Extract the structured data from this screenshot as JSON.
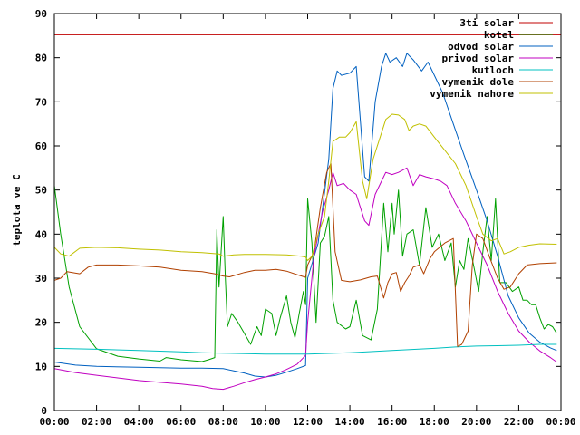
{
  "chart_data": {
    "type": "line",
    "title": "",
    "xlabel": "",
    "ylabel": "teplota ve C",
    "xlim": [
      0,
      24
    ],
    "ylim": [
      0,
      90
    ],
    "grid": false,
    "legend_position": "top-right",
    "x_tick_labels": [
      "00:00",
      "02:00",
      "04:00",
      "06:00",
      "08:00",
      "10:00",
      "12:00",
      "14:00",
      "16:00",
      "18:00",
      "20:00",
      "22:00",
      "00:00"
    ],
    "y_ticks": [
      0,
      10,
      20,
      30,
      40,
      50,
      60,
      70,
      80,
      90
    ],
    "series": [
      {
        "name": "3ti solar",
        "color": "#c00000",
        "points": [
          [
            0,
            85.2
          ],
          [
            24,
            85.2
          ]
        ]
      },
      {
        "name": "kotel",
        "color": "#00a000",
        "points": [
          [
            0,
            51
          ],
          [
            0.3,
            40
          ],
          [
            0.7,
            28
          ],
          [
            1.2,
            19
          ],
          [
            2,
            14
          ],
          [
            3,
            12.3
          ],
          [
            4,
            11.7
          ],
          [
            5,
            11.2
          ],
          [
            5.3,
            12
          ],
          [
            6,
            11.5
          ],
          [
            7,
            11.1
          ],
          [
            7.3,
            11.5
          ],
          [
            7.6,
            12
          ],
          [
            7.7,
            41
          ],
          [
            7.8,
            28
          ],
          [
            7.9,
            36
          ],
          [
            8,
            44
          ],
          [
            8.1,
            30
          ],
          [
            8.2,
            19
          ],
          [
            8.4,
            22
          ],
          [
            8.7,
            20
          ],
          [
            9,
            17.5
          ],
          [
            9.3,
            15
          ],
          [
            9.6,
            19
          ],
          [
            9.8,
            17
          ],
          [
            10,
            23
          ],
          [
            10.3,
            22
          ],
          [
            10.5,
            17
          ],
          [
            10.7,
            21
          ],
          [
            11,
            26
          ],
          [
            11.2,
            20
          ],
          [
            11.4,
            16.5
          ],
          [
            11.6,
            22
          ],
          [
            11.8,
            27
          ],
          [
            11.9,
            24
          ],
          [
            12,
            48
          ],
          [
            12.2,
            38
          ],
          [
            12.4,
            20
          ],
          [
            12.6,
            38
          ],
          [
            12.8,
            39.5
          ],
          [
            13,
            44
          ],
          [
            13.2,
            25
          ],
          [
            13.4,
            20
          ],
          [
            13.8,
            18.5
          ],
          [
            14,
            19
          ],
          [
            14.3,
            25
          ],
          [
            14.6,
            17
          ],
          [
            15,
            16
          ],
          [
            15.3,
            23
          ],
          [
            15.6,
            47
          ],
          [
            15.8,
            36
          ],
          [
            16,
            47
          ],
          [
            16.1,
            40
          ],
          [
            16.3,
            50
          ],
          [
            16.5,
            35
          ],
          [
            16.7,
            40
          ],
          [
            17,
            41
          ],
          [
            17.3,
            33
          ],
          [
            17.6,
            46
          ],
          [
            17.9,
            37
          ],
          [
            18.2,
            40
          ],
          [
            18.5,
            34
          ],
          [
            18.8,
            38
          ],
          [
            19,
            28
          ],
          [
            19.2,
            34
          ],
          [
            19.4,
            32
          ],
          [
            19.6,
            39
          ],
          [
            19.9,
            32
          ],
          [
            20.1,
            27
          ],
          [
            20.3,
            36
          ],
          [
            20.5,
            44
          ],
          [
            20.7,
            34
          ],
          [
            20.9,
            48
          ],
          [
            21.1,
            29
          ],
          [
            21.4,
            29
          ],
          [
            21.7,
            27
          ],
          [
            22,
            28
          ],
          [
            22.2,
            25
          ],
          [
            22.4,
            25
          ],
          [
            22.6,
            24
          ],
          [
            22.8,
            24
          ],
          [
            23,
            21
          ],
          [
            23.2,
            18.5
          ],
          [
            23.4,
            19.5
          ],
          [
            23.6,
            19
          ],
          [
            23.8,
            17.5
          ]
        ]
      },
      {
        "name": "odvod solar",
        "color": "#0060c0",
        "points": [
          [
            0,
            11
          ],
          [
            1,
            10.3
          ],
          [
            2,
            10
          ],
          [
            4,
            9.8
          ],
          [
            6,
            9.6
          ],
          [
            7,
            9.6
          ],
          [
            8,
            9.5
          ],
          [
            8.5,
            9
          ],
          [
            9,
            8.5
          ],
          [
            9.5,
            7.8
          ],
          [
            10,
            7.6
          ],
          [
            10.5,
            8
          ],
          [
            11,
            8.7
          ],
          [
            11.5,
            9.5
          ],
          [
            11.9,
            10.2
          ],
          [
            12,
            30
          ],
          [
            12.5,
            38
          ],
          [
            13,
            57
          ],
          [
            13.2,
            73
          ],
          [
            13.4,
            77
          ],
          [
            13.6,
            76
          ],
          [
            14,
            76.5
          ],
          [
            14.3,
            78
          ],
          [
            14.7,
            53
          ],
          [
            14.9,
            52
          ],
          [
            15.2,
            70
          ],
          [
            15.5,
            78
          ],
          [
            15.7,
            81
          ],
          [
            15.9,
            79
          ],
          [
            16.2,
            80
          ],
          [
            16.5,
            78
          ],
          [
            16.7,
            81
          ],
          [
            17,
            79.5
          ],
          [
            17.4,
            77
          ],
          [
            17.7,
            79
          ],
          [
            18,
            76
          ],
          [
            18.4,
            72
          ],
          [
            18.9,
            65
          ],
          [
            19.4,
            58
          ],
          [
            20,
            50
          ],
          [
            20.5,
            43
          ],
          [
            21,
            35
          ],
          [
            21.5,
            26
          ],
          [
            22,
            21
          ],
          [
            22.5,
            17.5
          ],
          [
            23,
            15.5
          ],
          [
            23.5,
            14.2
          ],
          [
            23.8,
            13.6
          ]
        ]
      },
      {
        "name": "privod solar",
        "color": "#c000c0",
        "points": [
          [
            0,
            9.5
          ],
          [
            1,
            8.6
          ],
          [
            2,
            8
          ],
          [
            3,
            7.4
          ],
          [
            4,
            6.8
          ],
          [
            5,
            6.4
          ],
          [
            6,
            6
          ],
          [
            7,
            5.5
          ],
          [
            7.5,
            5
          ],
          [
            8,
            4.8
          ],
          [
            8.5,
            5.5
          ],
          [
            9,
            6.3
          ],
          [
            9.5,
            7
          ],
          [
            10,
            7.6
          ],
          [
            10.5,
            8.3
          ],
          [
            11,
            9.3
          ],
          [
            11.5,
            10.5
          ],
          [
            11.9,
            12.5
          ],
          [
            12,
            20
          ],
          [
            12.3,
            35
          ],
          [
            12.7,
            45
          ],
          [
            13,
            50
          ],
          [
            13.2,
            54
          ],
          [
            13.4,
            51
          ],
          [
            13.7,
            51.5
          ],
          [
            14,
            50
          ],
          [
            14.3,
            49
          ],
          [
            14.7,
            43
          ],
          [
            14.9,
            42
          ],
          [
            15.2,
            49
          ],
          [
            15.5,
            52
          ],
          [
            15.7,
            54
          ],
          [
            16,
            53.5
          ],
          [
            16.3,
            54
          ],
          [
            16.7,
            55
          ],
          [
            17,
            51
          ],
          [
            17.3,
            53.5
          ],
          [
            17.6,
            53
          ],
          [
            18,
            52.5
          ],
          [
            18.3,
            52
          ],
          [
            18.6,
            51
          ],
          [
            19,
            47
          ],
          [
            19.5,
            43
          ],
          [
            20,
            38
          ],
          [
            20.5,
            33
          ],
          [
            21,
            27
          ],
          [
            21.5,
            22
          ],
          [
            22,
            18
          ],
          [
            22.5,
            15.5
          ],
          [
            23,
            13.5
          ],
          [
            23.5,
            12
          ],
          [
            23.8,
            11
          ]
        ]
      },
      {
        "name": "kutloch",
        "color": "#00c0c0",
        "points": [
          [
            0,
            14.1
          ],
          [
            2,
            13.9
          ],
          [
            4,
            13.6
          ],
          [
            6,
            13.3
          ],
          [
            7,
            13.1
          ],
          [
            8,
            13
          ],
          [
            10,
            12.8
          ],
          [
            12,
            12.8
          ],
          [
            14,
            13.1
          ],
          [
            16,
            13.6
          ],
          [
            18,
            14.1
          ],
          [
            19,
            14.4
          ],
          [
            20,
            14.6
          ],
          [
            21,
            14.7
          ],
          [
            22,
            14.8
          ],
          [
            23,
            15
          ],
          [
            23.8,
            15
          ]
        ]
      },
      {
        "name": "vymenik dole",
        "color": "#b04000",
        "points": [
          [
            0,
            29.5
          ],
          [
            0.3,
            30
          ],
          [
            0.6,
            31.5
          ],
          [
            1.2,
            31
          ],
          [
            1.6,
            32.5
          ],
          [
            2,
            33
          ],
          [
            3,
            33
          ],
          [
            4,
            32.8
          ],
          [
            5,
            32.5
          ],
          [
            6,
            31.8
          ],
          [
            7,
            31.5
          ],
          [
            7.6,
            31
          ],
          [
            8,
            30.5
          ],
          [
            8.3,
            30.3
          ],
          [
            9,
            31.3
          ],
          [
            9.5,
            31.8
          ],
          [
            10,
            31.8
          ],
          [
            10.5,
            32
          ],
          [
            11,
            31.6
          ],
          [
            11.5,
            30.8
          ],
          [
            11.9,
            30.2
          ],
          [
            12,
            33
          ],
          [
            12.3,
            36
          ],
          [
            12.6,
            46
          ],
          [
            12.9,
            54
          ],
          [
            13.1,
            56
          ],
          [
            13.3,
            36
          ],
          [
            13.6,
            29.5
          ],
          [
            14,
            29.2
          ],
          [
            14.5,
            29.6
          ],
          [
            15,
            30.3
          ],
          [
            15.3,
            30.5
          ],
          [
            15.6,
            25.5
          ],
          [
            15.8,
            29
          ],
          [
            16,
            31
          ],
          [
            16.2,
            31.3
          ],
          [
            16.4,
            27
          ],
          [
            16.6,
            29
          ],
          [
            16.8,
            30.5
          ],
          [
            17,
            32.5
          ],
          [
            17.3,
            33
          ],
          [
            17.5,
            31
          ],
          [
            17.8,
            34.5
          ],
          [
            18,
            36
          ],
          [
            18.5,
            38
          ],
          [
            18.9,
            39
          ],
          [
            19.1,
            14.5
          ],
          [
            19.3,
            15
          ],
          [
            19.6,
            18
          ],
          [
            19.8,
            33
          ],
          [
            20,
            40
          ],
          [
            20.3,
            39
          ],
          [
            20.6,
            35
          ],
          [
            21,
            30
          ],
          [
            21.3,
            27.5
          ],
          [
            21.6,
            28
          ],
          [
            22,
            31
          ],
          [
            22.4,
            33
          ],
          [
            23,
            33.3
          ],
          [
            23.8,
            33.5
          ]
        ]
      },
      {
        "name": "vymenik nahore",
        "color": "#c0c000",
        "points": [
          [
            0,
            37
          ],
          [
            0.3,
            35.5
          ],
          [
            0.7,
            35
          ],
          [
            1.2,
            36.8
          ],
          [
            2,
            37
          ],
          [
            3,
            36.9
          ],
          [
            4,
            36.6
          ],
          [
            5,
            36.4
          ],
          [
            6,
            36
          ],
          [
            7,
            35.8
          ],
          [
            7.8,
            35.5
          ],
          [
            8,
            35
          ],
          [
            8.5,
            35.3
          ],
          [
            9,
            35.4
          ],
          [
            10,
            35.4
          ],
          [
            11,
            35.3
          ],
          [
            11.7,
            35
          ],
          [
            11.9,
            34.8
          ],
          [
            12,
            34
          ],
          [
            12.2,
            35
          ],
          [
            12.5,
            40
          ],
          [
            12.8,
            44
          ],
          [
            13,
            52
          ],
          [
            13.2,
            61
          ],
          [
            13.5,
            62
          ],
          [
            13.8,
            62
          ],
          [
            14,
            63
          ],
          [
            14.3,
            65.5
          ],
          [
            14.6,
            52
          ],
          [
            14.8,
            48
          ],
          [
            15.1,
            57
          ],
          [
            15.4,
            61.5
          ],
          [
            15.7,
            66
          ],
          [
            16,
            67.2
          ],
          [
            16.3,
            67
          ],
          [
            16.6,
            66
          ],
          [
            16.8,
            63.5
          ],
          [
            17,
            64.5
          ],
          [
            17.3,
            65
          ],
          [
            17.6,
            64.5
          ],
          [
            18,
            62
          ],
          [
            18.5,
            59
          ],
          [
            19,
            56
          ],
          [
            19.5,
            51
          ],
          [
            20,
            44
          ],
          [
            20.3,
            40
          ],
          [
            20.7,
            38.5
          ],
          [
            21,
            39
          ],
          [
            21.3,
            35.5
          ],
          [
            21.6,
            36
          ],
          [
            22,
            37
          ],
          [
            22.5,
            37.5
          ],
          [
            23,
            37.8
          ],
          [
            23.8,
            37.7
          ]
        ]
      }
    ]
  }
}
